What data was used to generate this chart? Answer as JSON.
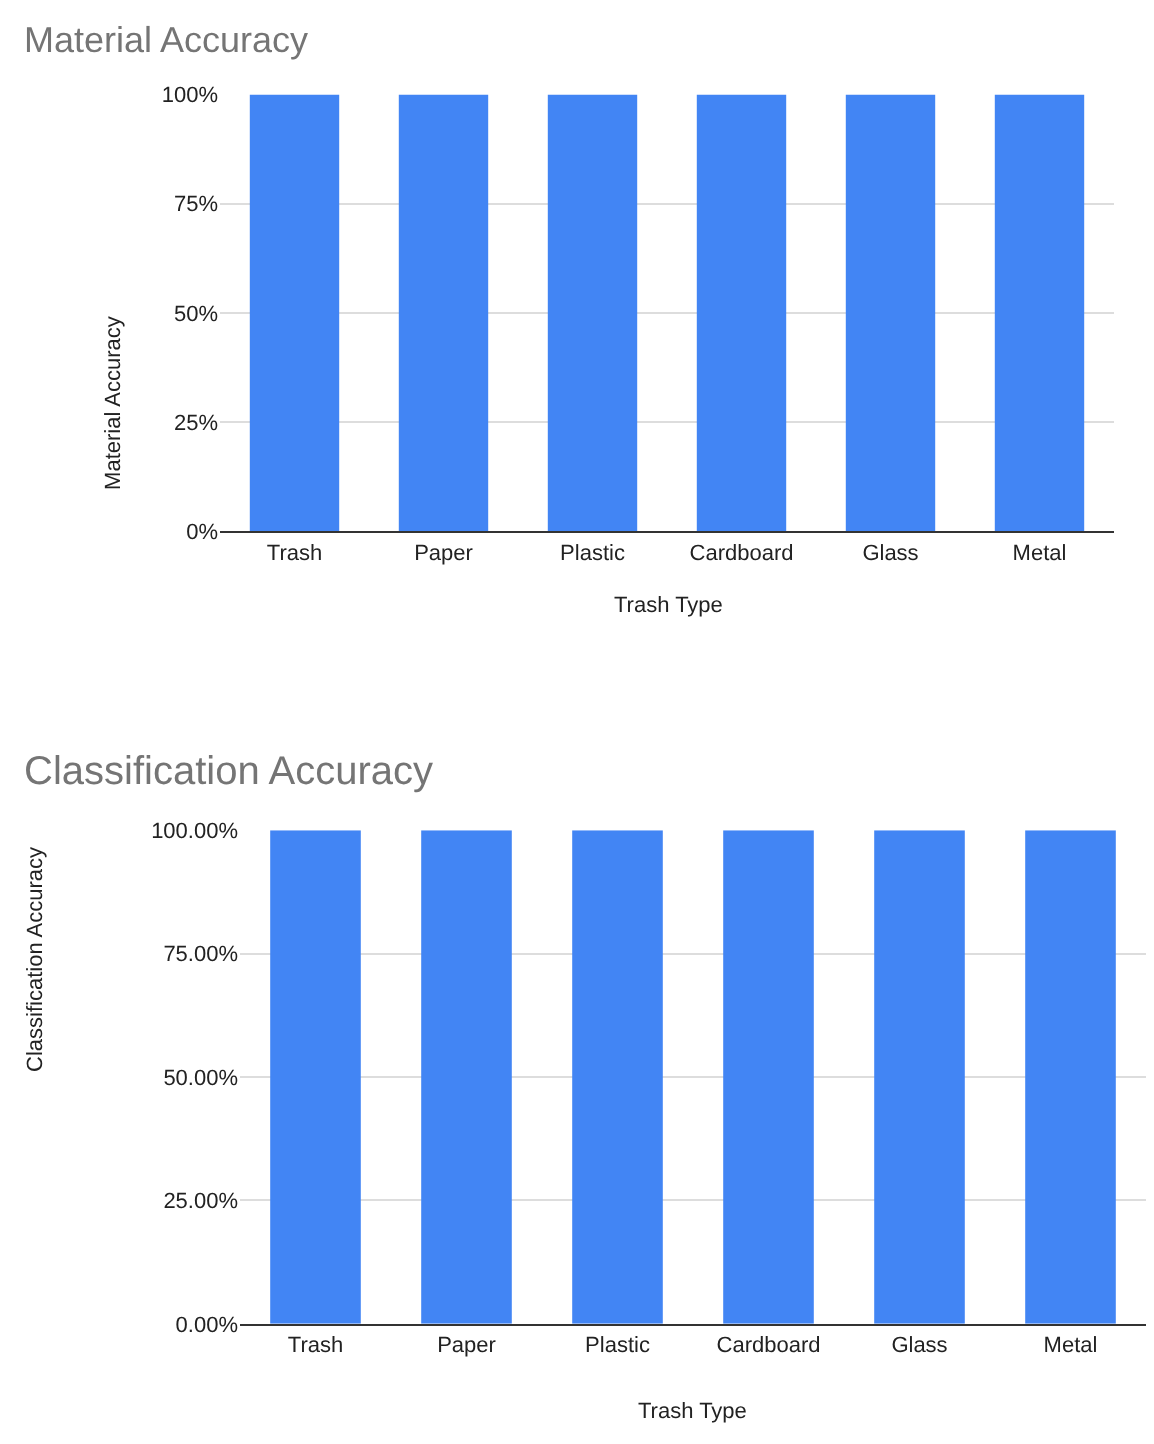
{
  "chart_data": [
    {
      "type": "bar",
      "title": "Material Accuracy",
      "xlabel": "Trash Type",
      "ylabel": "Material Accuracy",
      "categories": [
        "Trash",
        "Paper",
        "Plastic",
        "Cardboard",
        "Glass",
        "Metal"
      ],
      "values": [
        100,
        100,
        100,
        100,
        100,
        100
      ],
      "color": "#4285f4",
      "ylim": [
        0,
        100
      ],
      "yticks": [
        {
          "value": 0,
          "label": "0%"
        },
        {
          "value": 25,
          "label": "25%"
        },
        {
          "value": 50,
          "label": "50%"
        },
        {
          "value": 75,
          "label": "75%"
        },
        {
          "value": 100,
          "label": "100%"
        }
      ],
      "grid": "y"
    },
    {
      "type": "bar",
      "title": "Classification Accuracy",
      "xlabel": "Trash Type",
      "ylabel": "Classification Accuracy",
      "categories": [
        "Trash",
        "Paper",
        "Plastic",
        "Cardboard",
        "Glass",
        "Metal"
      ],
      "values": [
        100,
        100,
        100,
        100,
        100,
        100
      ],
      "color": "#4285f4",
      "ylim": [
        0,
        100
      ],
      "yticks": [
        {
          "value": 0,
          "label": "0.00%"
        },
        {
          "value": 25,
          "label": "25.00%"
        },
        {
          "value": 50,
          "label": "50.00%"
        },
        {
          "value": 75,
          "label": "75.00%"
        },
        {
          "value": 100,
          "label": "100.00%"
        }
      ],
      "grid": "y"
    }
  ]
}
